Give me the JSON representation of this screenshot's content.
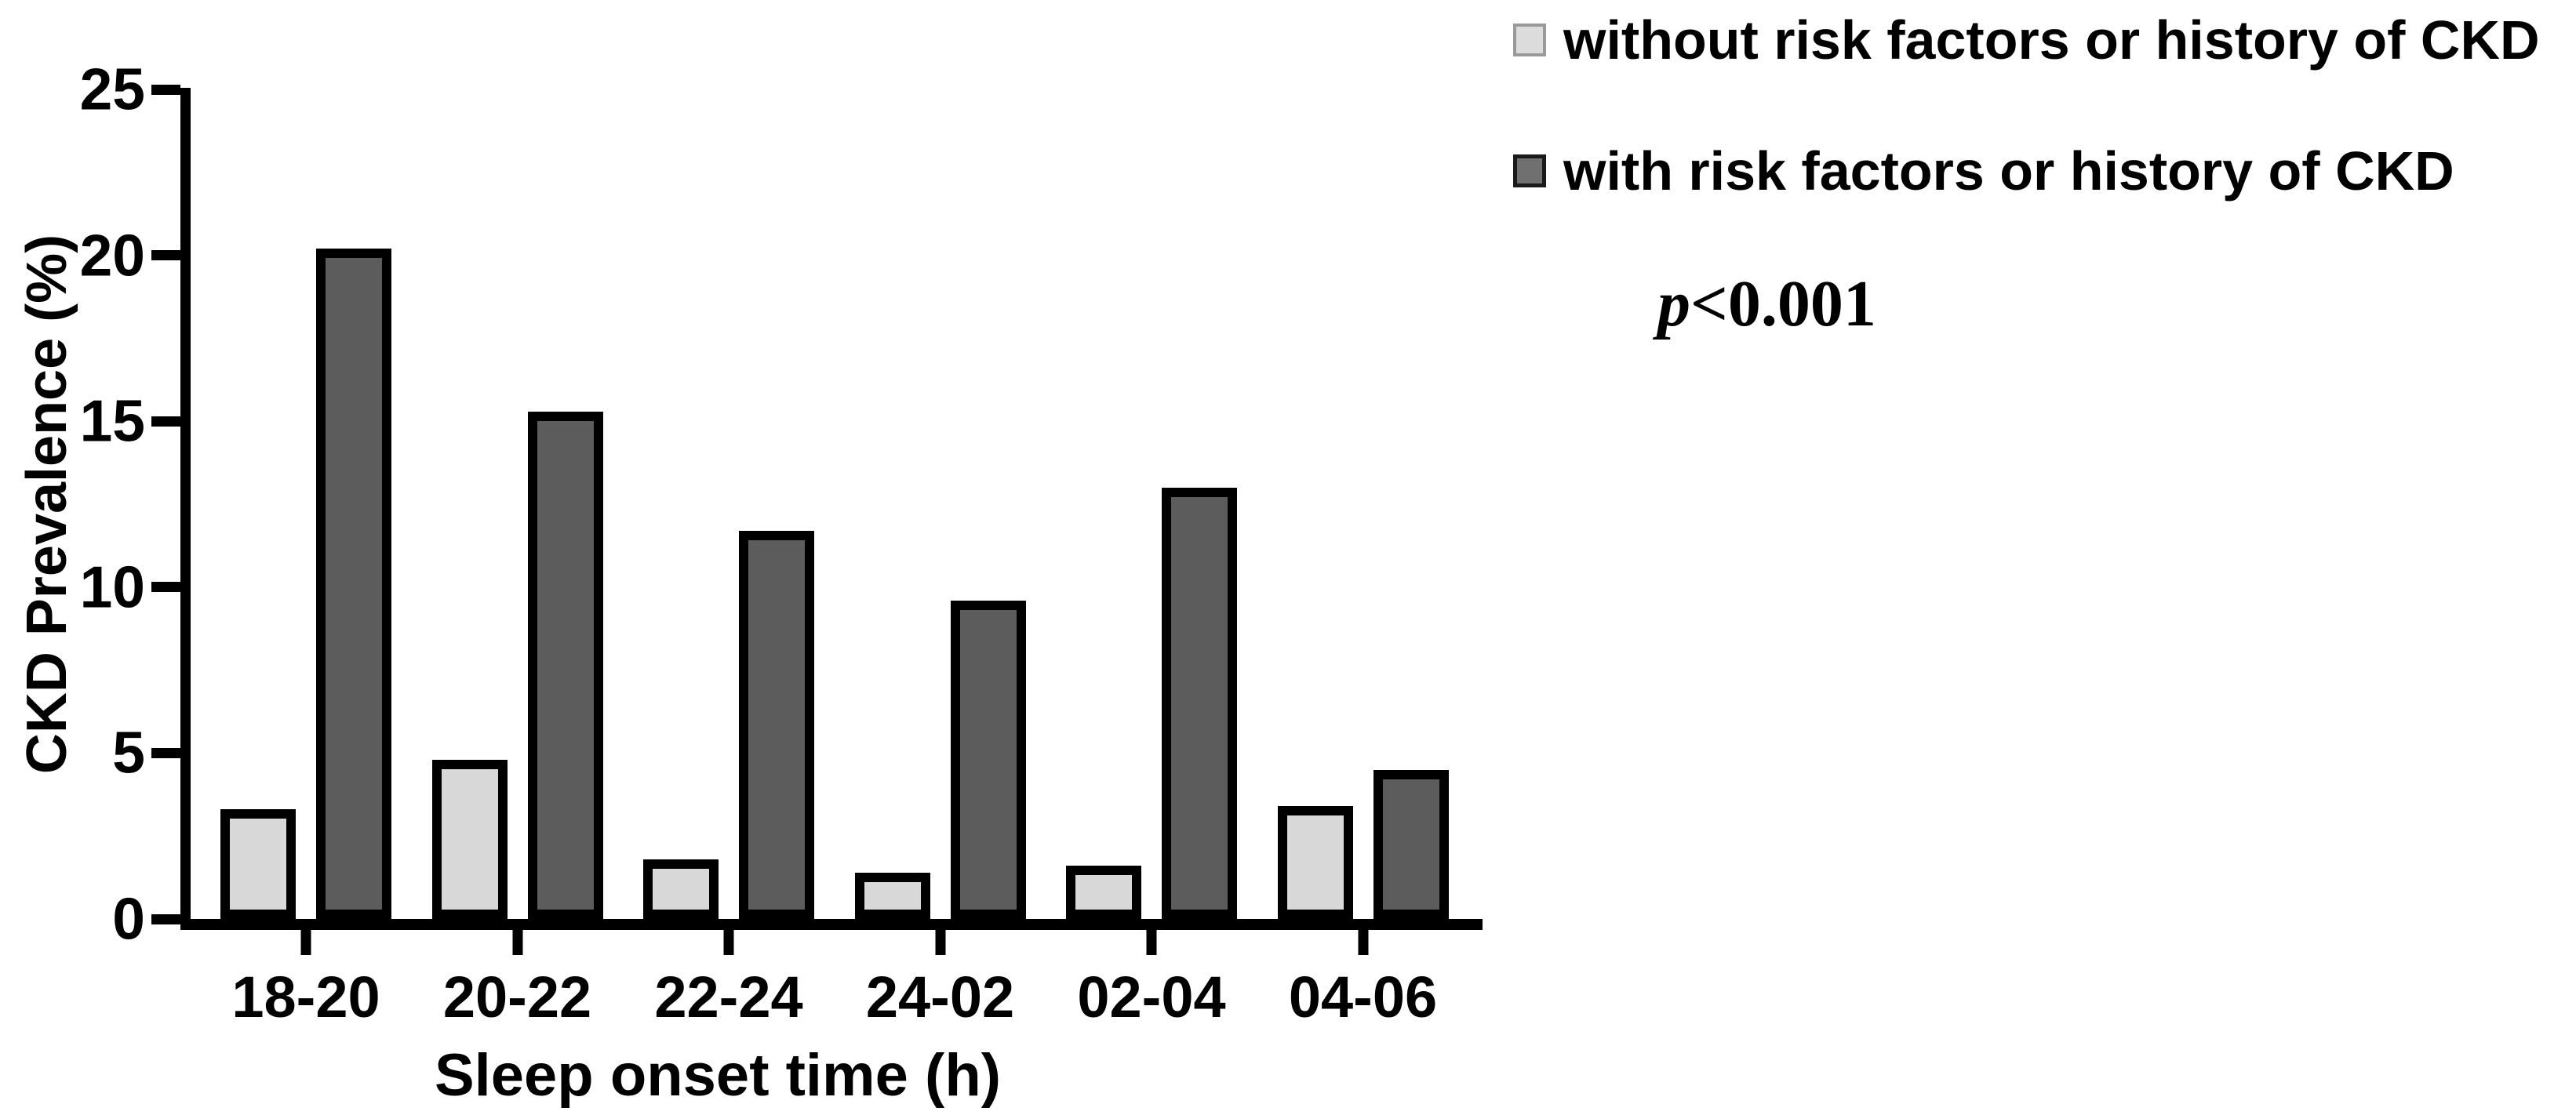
{
  "figure": {
    "legend": [
      {
        "label": "without risk factors or history of CKD",
        "swatch_fill": "#dcdcdc",
        "swatch_border": "#9a9a9a"
      },
      {
        "label": "with risk factors or history of CKD",
        "swatch_fill": "#707070",
        "swatch_border": "#1a1a1a"
      }
    ],
    "p_value_italic": "p",
    "p_value_rest": "<0.001"
  },
  "chart_data": {
    "type": "bar",
    "title": "",
    "categories": [
      "18-20",
      "20-22",
      "22-24",
      "24-02",
      "02-04",
      "04-06"
    ],
    "series": [
      {
        "name": "without risk factors or history of CKD",
        "color": "#d8d8d8",
        "values": [
          3.3,
          4.8,
          1.8,
          1.4,
          1.6,
          3.4
        ]
      },
      {
        "name": "with risk factors or history of CKD",
        "color": "#5c5c5c",
        "values": [
          20.2,
          15.3,
          11.7,
          9.6,
          13.0,
          4.5
        ]
      }
    ],
    "xlabel": "Sleep onset time (h)",
    "ylabel": "CKD Prevalence (%)",
    "ylim": [
      0,
      25
    ],
    "yticks": [
      0,
      5,
      10,
      15,
      20,
      25
    ],
    "annotation": "p<0.001",
    "bar_border_color": "#000000",
    "grid": false,
    "legend_position": "top-right"
  }
}
